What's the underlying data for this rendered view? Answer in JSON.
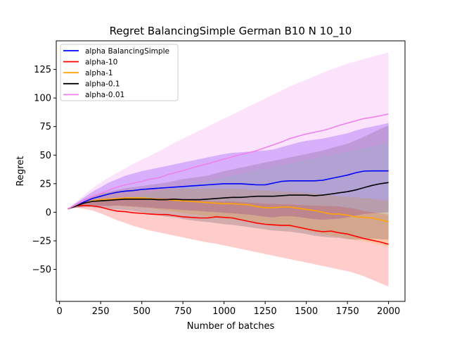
{
  "chart_data": {
    "type": "line",
    "title": "Regret BalancingSimple German B10 N 10_10",
    "xlabel": "Number of batches",
    "ylabel": "Regret",
    "xlim": [
      -20,
      2100
    ],
    "ylim": [
      -78,
      150
    ],
    "xticks": [
      0,
      250,
      500,
      750,
      1000,
      1250,
      1500,
      1750,
      2000
    ],
    "yticks": [
      -50,
      -25,
      0,
      25,
      50,
      75,
      100,
      125
    ],
    "grid": false,
    "legend_position": "top-left",
    "x": [
      50,
      100,
      150,
      200,
      250,
      300,
      350,
      400,
      450,
      500,
      550,
      600,
      650,
      700,
      750,
      800,
      850,
      900,
      950,
      1000,
      1050,
      1100,
      1150,
      1200,
      1250,
      1300,
      1350,
      1400,
      1450,
      1500,
      1550,
      1600,
      1650,
      1700,
      1750,
      1800,
      1850,
      1900,
      1950,
      2000
    ],
    "series": [
      {
        "name": "alpha BalancingSimple",
        "color": "#0000ff",
        "fill": "#8040ff",
        "fill_opacity": 0.35,
        "values": [
          3,
          6,
          9,
          12,
          14,
          16,
          17.5,
          18.5,
          19,
          20,
          20.5,
          21,
          21.5,
          22,
          22.5,
          23,
          23.5,
          24,
          24.5,
          25,
          25,
          25,
          24.5,
          24,
          24,
          25.5,
          27,
          27.5,
          27.5,
          27.5,
          27.5,
          28,
          29.5,
          31,
          32.5,
          34.5,
          36,
          36.2,
          36.2,
          36.2
        ],
        "upper": [
          3,
          8,
          13,
          18,
          22,
          26,
          29,
          32,
          34,
          36,
          37.5,
          39,
          40.5,
          42,
          43.5,
          45,
          46.5,
          48,
          49.5,
          51,
          52,
          52.5,
          53,
          53.5,
          54,
          55,
          57,
          59,
          61,
          62.5,
          63.5,
          64.5,
          66,
          67.5,
          69,
          71.5,
          73.5,
          75,
          76.5,
          78
        ],
        "lower": [
          3,
          4,
          5,
          5.5,
          5.5,
          5.5,
          6,
          5.5,
          5,
          4.5,
          4,
          3.5,
          3,
          2.5,
          2,
          1.5,
          1,
          0.5,
          0,
          -0.5,
          -1,
          -1.5,
          -2,
          -3,
          -4,
          -4.5,
          -3.5,
          -3.5,
          -4,
          -5,
          -6,
          -6.5,
          -6,
          -5.5,
          -4.5,
          -3,
          -1.5,
          -1,
          -0.5,
          0
        ]
      },
      {
        "name": "alpha-10",
        "color": "#ff0000",
        "fill": "#ff0000",
        "fill_opacity": 0.2,
        "values": [
          3,
          5.5,
          6,
          5.5,
          4.5,
          2.5,
          1,
          0.5,
          -0.5,
          -1,
          -1.5,
          -2,
          -2,
          -3,
          -4,
          -4.5,
          -5,
          -5,
          -4,
          -4.5,
          -5,
          -6.5,
          -8,
          -9.5,
          -10.5,
          -11,
          -11.5,
          -11.5,
          -13,
          -14.5,
          -16,
          -17,
          -16.5,
          -18,
          -19,
          -21,
          -23,
          -24.5,
          -26,
          -28
        ],
        "upper": [
          3,
          7,
          9,
          10,
          11,
          11,
          11,
          11.5,
          12,
          12.5,
          12.5,
          12.5,
          12.5,
          12,
          11.5,
          11,
          10.5,
          10,
          9.5,
          9.5,
          9.5,
          9,
          8.5,
          8,
          7.5,
          7.5,
          7,
          7,
          6.5,
          6,
          6,
          5.5,
          5.5,
          5,
          4,
          3,
          1,
          0,
          -1,
          -2
        ],
        "lower": [
          3,
          4,
          3,
          1.5,
          -1,
          -4,
          -7,
          -9.5,
          -12,
          -14,
          -16,
          -17.5,
          -19,
          -20.5,
          -22,
          -23.5,
          -25,
          -26.5,
          -27.5,
          -29,
          -30.5,
          -32,
          -33.5,
          -35,
          -36.5,
          -38,
          -39.5,
          -41,
          -42.5,
          -44,
          -45.5,
          -47,
          -48.5,
          -50,
          -51.5,
          -53.5,
          -56,
          -59,
          -62,
          -65
        ]
      },
      {
        "name": "alpha-1",
        "color": "#ffa500",
        "fill": "#ffa500",
        "fill_opacity": 0.2,
        "values": [
          3,
          5.5,
          8,
          10,
          11,
          11.5,
          12,
          12.5,
          12.5,
          12.5,
          12,
          11.5,
          11,
          10.5,
          10,
          9.5,
          9,
          8.5,
          8,
          7.5,
          7.5,
          7,
          6.5,
          5,
          4,
          4,
          4.5,
          4.5,
          3.5,
          2.5,
          1.5,
          0,
          -1.5,
          -1.5,
          -2.5,
          -4,
          -4.5,
          -5,
          -6.5,
          -8.5
        ],
        "upper": [
          3,
          7,
          11,
          14,
          16,
          17.5,
          18.5,
          19.5,
          20,
          20.5,
          20.5,
          20.5,
          20.5,
          20.5,
          20.5,
          20.5,
          20.5,
          20.5,
          20.5,
          20.5,
          20.5,
          20.5,
          20,
          19.5,
          19,
          18.5,
          18.5,
          18,
          17.5,
          17,
          16.5,
          16,
          15,
          14,
          13.5,
          13,
          12.5,
          12,
          11,
          10
        ],
        "lower": [
          3,
          4,
          5,
          6,
          6,
          5.5,
          5.5,
          5,
          4.5,
          4,
          3.5,
          2.5,
          1.5,
          0.5,
          -0.5,
          -1.5,
          -2.5,
          -3.5,
          -4.5,
          -5.5,
          -6,
          -7,
          -8,
          -9.5,
          -11,
          -12,
          -12.5,
          -13,
          -14.5,
          -16,
          -17.5,
          -19,
          -20.5,
          -21.5,
          -23,
          -24.5,
          -25.5,
          -27,
          -28.5,
          -30
        ]
      },
      {
        "name": "alpha-0.1",
        "color": "#000000",
        "fill": "#505050",
        "fill_opacity": 0.25,
        "values": [
          3,
          5.5,
          8,
          9.5,
          10,
          10.5,
          11,
          11.5,
          11.5,
          11.5,
          11.5,
          11,
          11,
          11.5,
          11,
          11,
          11,
          11.5,
          12,
          12.5,
          13,
          13,
          13.5,
          14,
          14,
          14,
          14.5,
          15,
          15,
          15,
          14.5,
          15,
          16,
          17,
          18,
          19.5,
          21.5,
          23.5,
          25,
          26
        ],
        "upper": [
          3,
          7.5,
          11.5,
          14.5,
          16.5,
          18,
          19.5,
          21,
          22,
          23,
          24,
          25,
          26,
          27.5,
          29,
          30,
          31,
          32,
          34,
          36,
          37.5,
          39,
          40.5,
          42,
          43.5,
          45,
          46.5,
          48,
          49.5,
          51,
          52.5,
          54,
          56,
          58,
          60,
          63,
          66,
          69.5,
          73,
          76
        ],
        "lower": [
          3,
          4,
          4.5,
          4.5,
          3.5,
          3,
          2.5,
          2,
          1,
          0,
          -1,
          -2.5,
          -4,
          -4.5,
          -6,
          -7,
          -8,
          -8.5,
          -9.5,
          -10.5,
          -11,
          -12,
          -13,
          -14,
          -15,
          -16,
          -16.5,
          -17,
          -18,
          -19,
          -20.5,
          -21.5,
          -22,
          -22.5,
          -23.5,
          -24,
          -23.5,
          -23,
          -23.5,
          -24
        ]
      },
      {
        "name": "alpha-0.01",
        "color": "#ee82ee",
        "fill": "#ee82ee",
        "fill_opacity": 0.22,
        "values": [
          3,
          6.5,
          10.5,
          14,
          16.5,
          19.5,
          22,
          24,
          25.5,
          27,
          29,
          30,
          32.5,
          34.5,
          36.5,
          38.5,
          40.5,
          42.5,
          44.5,
          46.5,
          48.5,
          50.5,
          52,
          54,
          56.5,
          59,
          61.5,
          64.5,
          66.5,
          68.5,
          70,
          71.5,
          73.5,
          76,
          78,
          80,
          82,
          83,
          84.5,
          86
        ],
        "upper": [
          3,
          9,
          15,
          21,
          26,
          30.5,
          34.5,
          38.5,
          42.5,
          46,
          49.5,
          53,
          57,
          61,
          64.5,
          68,
          71.5,
          75,
          78.5,
          82,
          85.5,
          89,
          92.5,
          96,
          99.5,
          103,
          106.5,
          110,
          113,
          116,
          119,
          122,
          125,
          127.5,
          130,
          132,
          134,
          136,
          138,
          140
        ],
        "lower": [
          3,
          4.5,
          6.5,
          8,
          9.5,
          10.5,
          12,
          13,
          14,
          15.5,
          17,
          18.5,
          20,
          21.5,
          23,
          24.5,
          26,
          27.5,
          29,
          30.5,
          32,
          33.5,
          35,
          36.5,
          38,
          39.5,
          41,
          42.5,
          44,
          45.5,
          47,
          48.5,
          50,
          51.5,
          53,
          54.5,
          56,
          57.5,
          59,
          60.5
        ]
      }
    ]
  }
}
